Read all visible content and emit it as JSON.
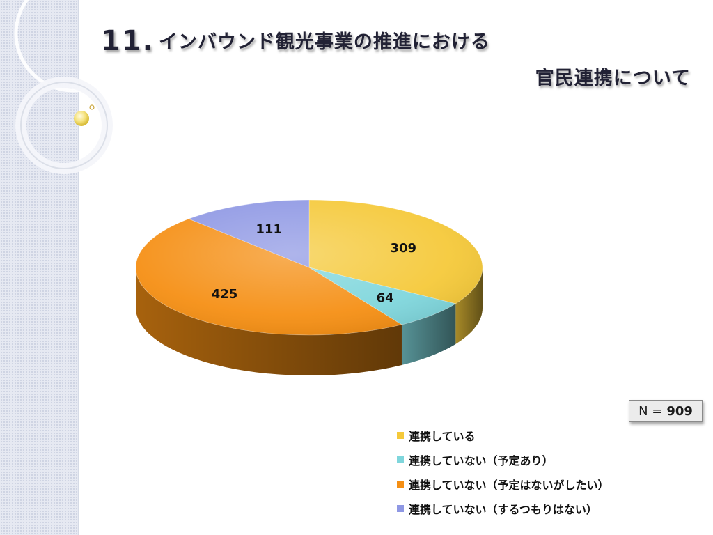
{
  "title": {
    "number": "11.",
    "line1": "インバウンド観光事業の推進における",
    "line2": "官民連携について"
  },
  "sample_size": {
    "label": "N =",
    "value": "909"
  },
  "colors": {
    "slice_1": "#f5c93a",
    "slice_2": "#7fd6dc",
    "slice_3": "#f58f14",
    "slice_4": "#8f98e4"
  },
  "chart_data": {
    "type": "pie",
    "title": "",
    "categories": [
      "連携している",
      "連携していない（予定あり）",
      "連携していない（予定はないがしたい）",
      "連携していない（するつもりはない）"
    ],
    "values": [
      309,
      64,
      425,
      111
    ],
    "total": 909,
    "legend": "bottom-right",
    "style": "3d"
  }
}
